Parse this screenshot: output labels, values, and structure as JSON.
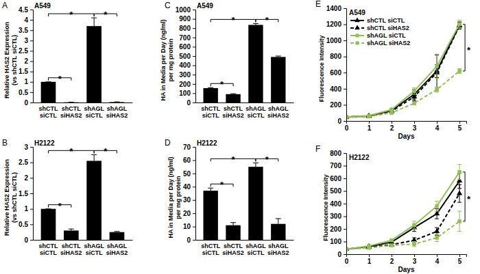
{
  "chart_data": [
    {
      "type": "bar",
      "panel_label": "A",
      "title": "A549",
      "ylabel": [
        "Relative HAS2 Expression",
        "(vs shCTL siCTL)"
      ],
      "categories": [
        "shCTL siCTL",
        "shCTL siHAS2",
        "shAGL siCTL",
        "shAGL siHAS2"
      ],
      "values": [
        1.0,
        0.01,
        3.7,
        0.02
      ],
      "errors": [
        0,
        0.005,
        0.4,
        0.01
      ],
      "color": "#000000",
      "ylim": [
        0,
        4.5
      ],
      "yticks": [
        0,
        0.5,
        1,
        1.5,
        2,
        2.5,
        3,
        3.5,
        4,
        4.5
      ],
      "grid": false,
      "annotations": [
        {
          "text": "*",
          "from": 0,
          "to": 1
        },
        {
          "text": "*",
          "from": 0,
          "to": 2
        },
        {
          "text": "*",
          "from": 2,
          "to": 3
        }
      ]
    },
    {
      "type": "bar",
      "panel_label": "B",
      "title": "H2122",
      "ylabel": [
        "Relative HAS2 Expression",
        "(vs shCTL siCTL)"
      ],
      "categories": [
        "shCTL siCTL",
        "shCTL siHAS2",
        "shAGL siCTL",
        "shAGL siHAS2"
      ],
      "values": [
        1.0,
        0.3,
        2.55,
        0.25
      ],
      "errors": [
        0,
        0.05,
        0.2,
        0.02
      ],
      "color": "#000000",
      "ylim": [
        0,
        3
      ],
      "yticks": [
        0,
        0.5,
        1,
        1.5,
        2,
        2.5,
        3
      ],
      "grid": false,
      "annotations": [
        {
          "text": "*",
          "from": 0,
          "to": 1
        },
        {
          "text": "*",
          "from": 0,
          "to": 2
        },
        {
          "text": "*",
          "from": 2,
          "to": 3
        }
      ]
    },
    {
      "type": "bar",
      "panel_label": "C",
      "title": "A549",
      "ylabel": [
        "HA in Media per Day (ng/ml)",
        "per mg protein"
      ],
      "categories": [
        "shCTL siCTL",
        "shCTL siHAS2",
        "shAGL siCTL",
        "shAGL siHAS2"
      ],
      "values": [
        155,
        90,
        835,
        490
      ],
      "errors": [
        5,
        5,
        15,
        10
      ],
      "color": "#000000",
      "ylim": [
        0,
        1000
      ],
      "yticks": [
        0,
        100,
        200,
        300,
        400,
        500,
        600,
        700,
        800,
        900,
        1000
      ],
      "grid": false,
      "annotations": [
        {
          "text": "*",
          "from": 0,
          "to": 1
        },
        {
          "text": "*",
          "from": 0,
          "to": 2
        },
        {
          "text": "*",
          "from": 2,
          "to": 3
        }
      ]
    },
    {
      "type": "bar",
      "panel_label": "D",
      "title": "H2122",
      "ylabel": [
        "HA in Media per Day (ng/ml)",
        "per mg protein"
      ],
      "categories": [
        "shCTL siCTL",
        "shCTL siHAS2",
        "shAGL siCTL",
        "shAGL siHAS2"
      ],
      "values": [
        37,
        11,
        55,
        12
      ],
      "errors": [
        2,
        2,
        3,
        4
      ],
      "color": "#000000",
      "ylim": [
        0,
        70
      ],
      "yticks": [
        0,
        10,
        20,
        30,
        40,
        50,
        60,
        70
      ],
      "grid": false,
      "annotations": [
        {
          "text": "*",
          "from": 0,
          "to": 1
        },
        {
          "text": "*",
          "from": 0,
          "to": 2
        },
        {
          "text": "*",
          "from": 2,
          "to": 3
        }
      ]
    },
    {
      "type": "line",
      "panel_label": "E",
      "title": "A549",
      "ylabel": [
        "Fluorescence Intensity"
      ],
      "xlabel": "Days",
      "x": [
        0,
        1,
        2,
        3,
        4,
        5
      ],
      "xlim": [
        0,
        5.3
      ],
      "xticks": [
        0,
        1,
        2,
        3,
        4,
        5
      ],
      "ylim": [
        0,
        1400
      ],
      "yticks": [
        0,
        200,
        400,
        600,
        800,
        1000,
        1200,
        1400
      ],
      "grid": false,
      "legend": "upper left",
      "series": [
        {
          "name": "shCTL siCTL",
          "color": "#000000",
          "marker": "triangle",
          "line_style": "solid",
          "values": [
            50,
            60,
            130,
            330,
            620,
            1190
          ],
          "errors": [
            5,
            5,
            15,
            60,
            80,
            40
          ]
        },
        {
          "name": "shCTL siHAS2",
          "color": "#000000",
          "marker": "triangle",
          "line_style": "dashed",
          "values": [
            50,
            60,
            120,
            300,
            600,
            1180
          ],
          "errors": [
            5,
            5,
            10,
            50,
            220,
            40
          ]
        },
        {
          "name": "shAGL siCTL",
          "color": "#92c050",
          "marker": "square",
          "line_style": "solid",
          "values": [
            50,
            65,
            140,
            370,
            680,
            1200
          ],
          "errors": [
            5,
            5,
            15,
            40,
            150,
            50
          ]
        },
        {
          "name": "shAGL siHAS2",
          "color": "#92c050",
          "marker": "square",
          "line_style": "dashed",
          "values": [
            45,
            55,
            100,
            220,
            390,
            620
          ],
          "errors": [
            5,
            5,
            10,
            20,
            30,
            30
          ]
        }
      ],
      "annotations": [
        {
          "text": "*",
          "series": [
            2,
            3
          ],
          "index": 5
        }
      ]
    },
    {
      "type": "line",
      "panel_label": "F",
      "title": "H2122",
      "ylabel": [
        "Fluorescence Intensity"
      ],
      "xlabel": "Days",
      "x": [
        0,
        1,
        2,
        3,
        4,
        5
      ],
      "xlim": [
        0,
        5.3
      ],
      "xticks": [
        0,
        1,
        2,
        3,
        4,
        5
      ],
      "ylim": [
        0,
        800
      ],
      "yticks": [
        0,
        100,
        200,
        300,
        400,
        500,
        600,
        700,
        800
      ],
      "grid": false,
      "series": [
        {
          "name": "shCTL siCTL",
          "color": "#000000",
          "marker": "triangle",
          "line_style": "solid",
          "values": [
            40,
            60,
            95,
            210,
            320,
            580
          ],
          "errors": [
            3,
            5,
            10,
            30,
            40,
            60
          ]
        },
        {
          "name": "shCTL siHAS2",
          "color": "#000000",
          "marker": "triangle",
          "line_style": "dashed",
          "values": [
            40,
            55,
            75,
            110,
            180,
            480
          ],
          "errors": [
            3,
            5,
            10,
            20,
            30,
            70
          ]
        },
        {
          "name": "shAGL siCTL",
          "color": "#92c050",
          "marker": "square",
          "line_style": "solid",
          "values": [
            40,
            65,
            110,
            230,
            380,
            650
          ],
          "errors": [
            3,
            5,
            10,
            30,
            40,
            60
          ]
        },
        {
          "name": "shAGL siHAS2",
          "color": "#92c050",
          "marker": "square",
          "line_style": "dashed",
          "values": [
            40,
            50,
            70,
            80,
            130,
            260
          ],
          "errors": [
            3,
            5,
            10,
            20,
            30,
            80
          ]
        }
      ],
      "annotations": [
        {
          "text": "*",
          "series": [
            2,
            3
          ],
          "index": 5
        }
      ]
    }
  ]
}
